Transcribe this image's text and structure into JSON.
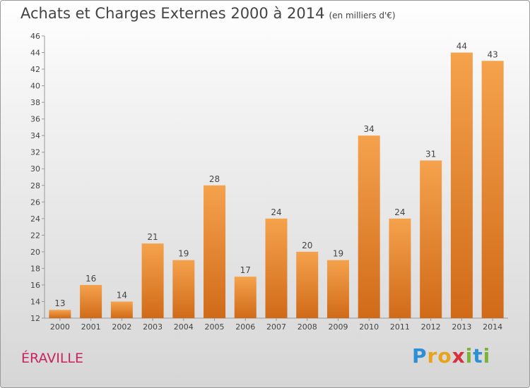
{
  "header": {
    "title": "Achats et Charges Externes 2000 à 2014",
    "unit": "(en milliers d'€)"
  },
  "footer": {
    "commune": "ÉRAVILLE",
    "brand": "Proxiti"
  },
  "colors": {
    "bar_light": "#f5a24d",
    "bar_dark": "#d06a18",
    "commune": "#c8235e"
  },
  "chart_data": {
    "type": "bar",
    "categories": [
      "2000",
      "2001",
      "2002",
      "2003",
      "2004",
      "2005",
      "2006",
      "2007",
      "2008",
      "2009",
      "2010",
      "2011",
      "2012",
      "2013",
      "2014"
    ],
    "values": [
      13,
      16,
      14,
      21,
      19,
      28,
      17,
      24,
      20,
      19,
      34,
      24,
      31,
      44,
      43
    ],
    "ylim": [
      12,
      46
    ],
    "yticks": [
      12,
      14,
      16,
      18,
      20,
      22,
      24,
      26,
      28,
      30,
      32,
      34,
      36,
      38,
      40,
      42,
      44,
      46
    ],
    "grid": false,
    "data_labels": true
  }
}
